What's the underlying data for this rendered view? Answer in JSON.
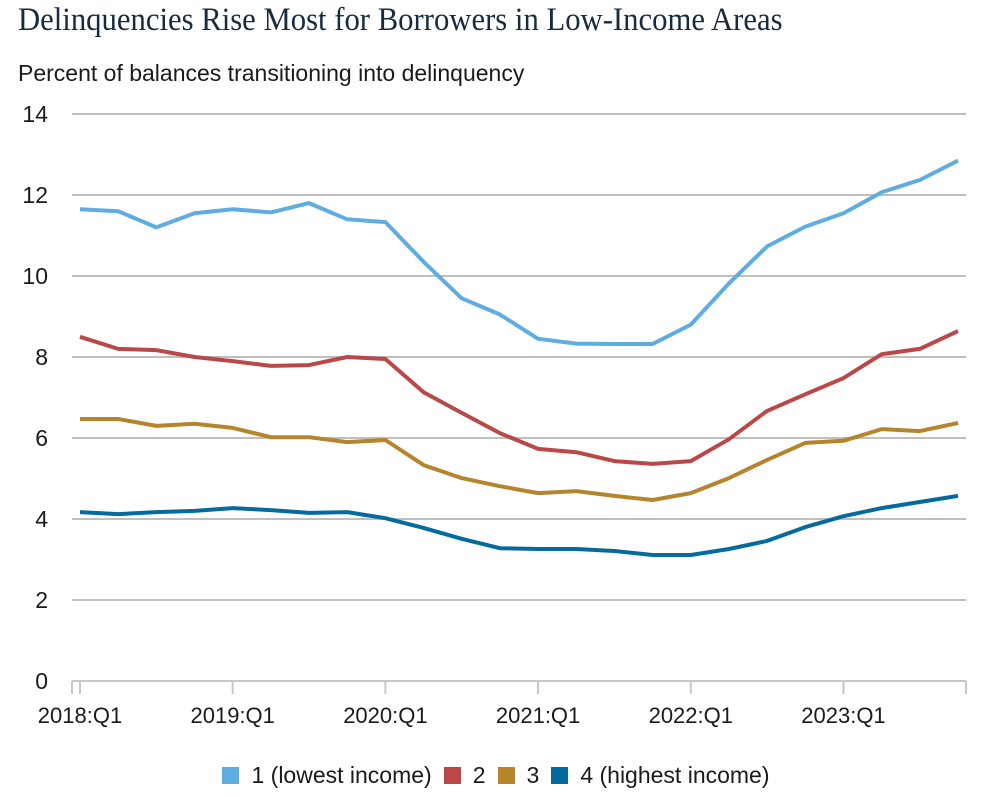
{
  "chart_data": {
    "type": "line",
    "title": "Delinquencies Rise Most for Borrowers in Low-Income Areas",
    "subtitle": "Percent of balances transitioning into delinquency",
    "xlabel": "",
    "ylabel": "Percent of balances transitioning into delinquency",
    "ylim": [
      0,
      14
    ],
    "yticks": [
      "0",
      "2",
      "4",
      "6",
      "8",
      "10",
      "12",
      "14"
    ],
    "grid": true,
    "legend_position": "bottom",
    "x": [
      "2018:Q1",
      "2018:Q2",
      "2018:Q3",
      "2018:Q4",
      "2019:Q1",
      "2019:Q2",
      "2019:Q3",
      "2019:Q4",
      "2020:Q1",
      "2020:Q2",
      "2020:Q3",
      "2020:Q4",
      "2021:Q1",
      "2021:Q2",
      "2021:Q3",
      "2021:Q4",
      "2022:Q1",
      "2022:Q2",
      "2022:Q3",
      "2022:Q4",
      "2023:Q1",
      "2023:Q2",
      "2023:Q3",
      "2023:Q4"
    ],
    "xtick_labels": [
      "2018:Q1",
      "2019:Q1",
      "2020:Q1",
      "2021:Q1",
      "2022:Q1",
      "2023:Q1"
    ],
    "series": [
      {
        "name": "1 (lowest income)",
        "color": "#5fade0",
        "values": [
          11.65,
          11.6,
          11.2,
          11.55,
          11.65,
          11.57,
          11.8,
          11.4,
          11.33,
          10.35,
          9.45,
          9.05,
          8.45,
          8.33,
          8.32,
          8.32,
          8.8,
          9.82,
          10.73,
          11.22,
          11.55,
          12.07,
          12.37,
          12.85
        ]
      },
      {
        "name": "2",
        "color": "#bb4848",
        "values": [
          8.5,
          8.2,
          8.17,
          8.0,
          7.9,
          7.78,
          7.8,
          8.0,
          7.95,
          7.13,
          6.62,
          6.12,
          5.73,
          5.65,
          5.43,
          5.36,
          5.43,
          5.97,
          6.67,
          7.08,
          7.48,
          8.07,
          8.2,
          8.64
        ]
      },
      {
        "name": "3",
        "color": "#b5852e",
        "values": [
          6.47,
          6.47,
          6.3,
          6.35,
          6.25,
          6.02,
          6.02,
          5.9,
          5.95,
          5.33,
          5.01,
          4.81,
          4.64,
          4.69,
          4.57,
          4.47,
          4.64,
          5.01,
          5.46,
          5.88,
          5.93,
          6.22,
          6.17,
          6.37
        ]
      },
      {
        "name": "4 (highest income)",
        "color": "#056b9e",
        "values": [
          4.17,
          4.12,
          4.17,
          4.2,
          4.27,
          4.22,
          4.15,
          4.17,
          4.02,
          3.78,
          3.51,
          3.28,
          3.26,
          3.26,
          3.21,
          3.11,
          3.11,
          3.26,
          3.46,
          3.8,
          4.07,
          4.27,
          4.42,
          4.57
        ]
      }
    ]
  },
  "colors": {
    "title": "#172a40",
    "grid": "#bfbfbf",
    "axis": "#c8c8c8"
  }
}
